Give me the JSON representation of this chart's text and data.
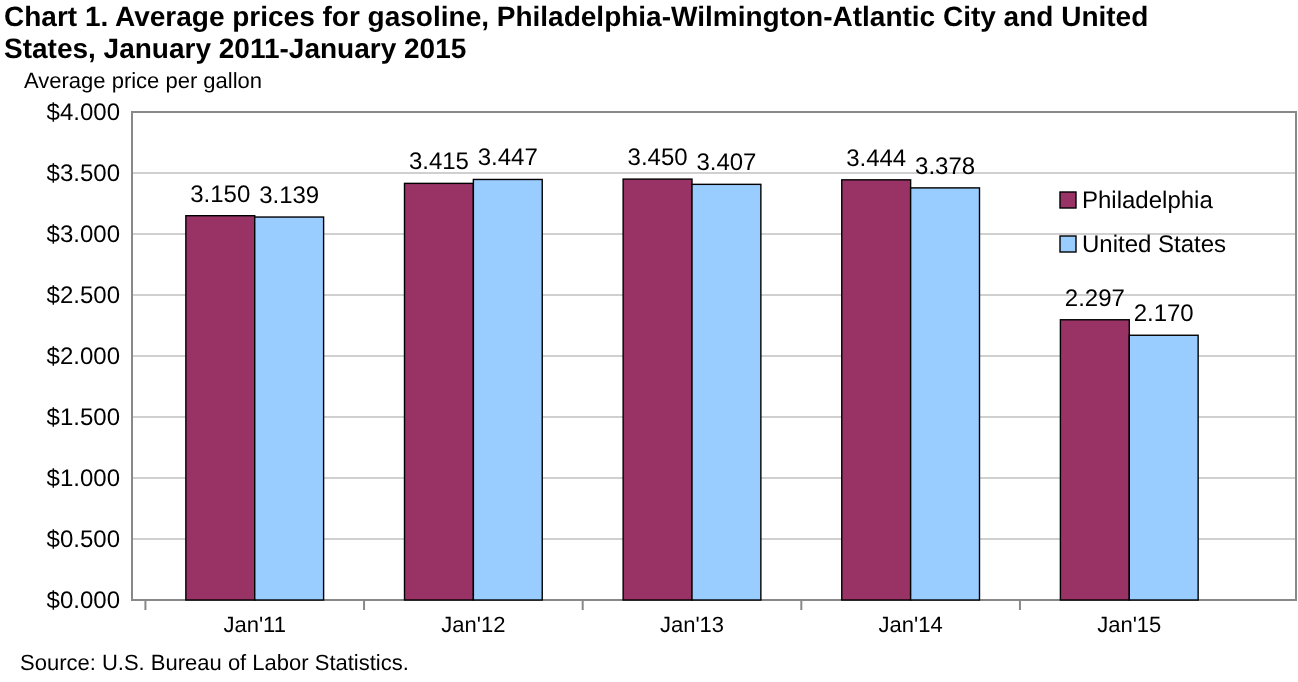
{
  "chart_data": {
    "type": "bar",
    "title": "Chart 1. Average prices for gasoline, Philadelphia-Wilmington-Atlantic  City and United States, January 2011-January 2015",
    "ylabel": "Average price per gallon",
    "categories": [
      "Jan'11",
      "Jan'12",
      "Jan'13",
      "Jan'14",
      "Jan'15"
    ],
    "series": [
      {
        "name": "Philadelphia",
        "color": "#993366",
        "values": [
          3.15,
          3.415,
          3.45,
          3.444,
          2.297
        ],
        "value_labels": [
          "3.150",
          "3.415",
          "3.450",
          "3.444",
          "2.297"
        ]
      },
      {
        "name": "United States",
        "color": "#99ccff",
        "values": [
          3.139,
          3.447,
          3.407,
          3.378,
          2.17
        ],
        "value_labels": [
          "3.139",
          "3.447",
          "3.407",
          "3.378",
          "2.170"
        ]
      }
    ],
    "ylim": [
      0,
      4
    ],
    "yticks": [
      {
        "value": 0,
        "label": "$0.000"
      },
      {
        "value": 0.5,
        "label": "$0.500"
      },
      {
        "value": 1,
        "label": "$1.000"
      },
      {
        "value": 1.5,
        "label": "$1.500"
      },
      {
        "value": 2,
        "label": "$2.000"
      },
      {
        "value": 2.5,
        "label": "$2.500"
      },
      {
        "value": 3,
        "label": "$3.000"
      },
      {
        "value": 3.5,
        "label": "$3.500"
      },
      {
        "value": 4,
        "label": "$4.000"
      }
    ],
    "grid": "y",
    "legend": "right",
    "annotations": [
      "Source: U.S. Bureau of Labor Statistics."
    ]
  }
}
